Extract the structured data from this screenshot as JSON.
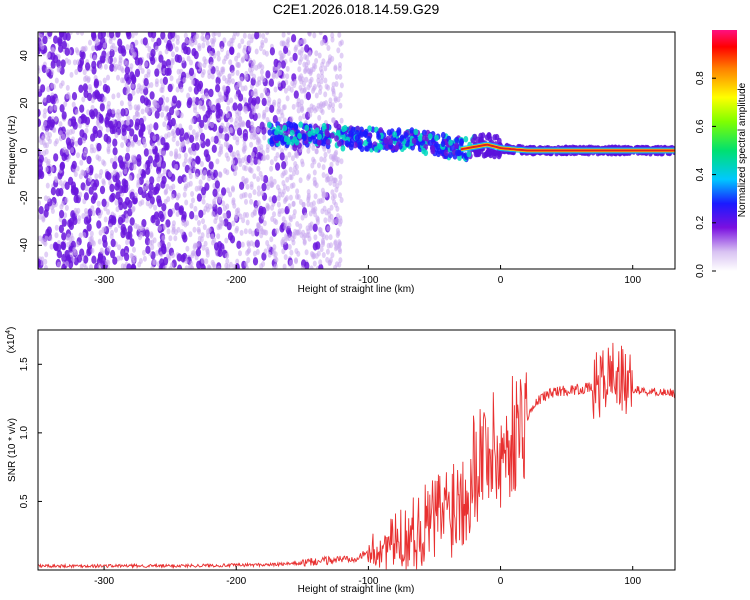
{
  "title": "C2E1.2026.018.14.59.G29",
  "colors": {
    "snr_line": "#e83030",
    "spectro_sparse": "#c9a8ee",
    "spectro_dense": "#6a16dc",
    "carrier": "#e02020"
  },
  "chart_data": [
    {
      "type": "heatmap",
      "name": "spectrogram",
      "xlabel": "Height of straight line (km)",
      "ylabel": "Frequency (Hz)",
      "xlim": [
        -350,
        132
      ],
      "ylim": [
        -50,
        50
      ],
      "xticks": [
        -300,
        -200,
        -100,
        0,
        100
      ],
      "xtick_labels": [
        "-300",
        "-200",
        "-100",
        "0",
        "100"
      ],
      "yticks": [
        -40,
        -20,
        0,
        20,
        40
      ],
      "ytick_labels": [
        "-40",
        "-20",
        "0",
        "20",
        "40"
      ],
      "noise_region_x": [
        -350,
        -120
      ],
      "carrier_band": [
        {
          "x": -175,
          "f": 7.0
        },
        {
          "x": -150,
          "f": 6.5
        },
        {
          "x": -125,
          "f": 5.5
        },
        {
          "x": -100,
          "f": 5.0
        },
        {
          "x": -75,
          "f": 4.5
        },
        {
          "x": -50,
          "f": 3.0
        },
        {
          "x": -30,
          "f": 0.5
        },
        {
          "x": -10,
          "f": 2.5
        },
        {
          "x": 0,
          "f": 1.0
        },
        {
          "x": 20,
          "f": 0.0
        },
        {
          "x": 132,
          "f": 0.0
        }
      ],
      "colorbar": {
        "label": "Normalized spectral amplitude",
        "range": [
          0,
          1
        ],
        "ticks": [
          0.0,
          0.2,
          0.4,
          0.6,
          0.8
        ],
        "tick_labels": [
          "0.0",
          "0.2",
          "0.4",
          "0.6",
          "0.8"
        ]
      }
    },
    {
      "type": "line",
      "name": "snr",
      "xlabel": "Height of straight line (km)",
      "ylabel": "SNR (10 * v/v)",
      "multiplier": "(x10",
      "multiplier_exp": "4",
      "multiplier_close": ")",
      "xlim": [
        -350,
        132
      ],
      "ylim": [
        0,
        1.75
      ],
      "xticks": [
        -300,
        -200,
        -100,
        0,
        100
      ],
      "xtick_labels": [
        "-300",
        "-200",
        "-100",
        "0",
        "100"
      ],
      "yticks": [
        0.5,
        1.0,
        1.5
      ],
      "ytick_labels": [
        "0.5",
        "1.0",
        "1.5"
      ],
      "series": [
        {
          "name": "SNR",
          "x": [
            -350,
            -300,
            -250,
            -200,
            -170,
            -150,
            -130,
            -110,
            -100,
            -90,
            -80,
            -70,
            -60,
            -50,
            -40,
            -30,
            -20,
            -15,
            -10,
            -5,
            0,
            5,
            10,
            15,
            20,
            30,
            40,
            50,
            60,
            70,
            75,
            80,
            85,
            90,
            95,
            100,
            110,
            120,
            132
          ],
          "y": [
            0.03,
            0.03,
            0.03,
            0.035,
            0.04,
            0.05,
            0.07,
            0.09,
            0.12,
            0.16,
            0.2,
            0.25,
            0.3,
            0.38,
            0.45,
            0.55,
            0.75,
            0.85,
            0.9,
            0.85,
            0.82,
            0.9,
            1.0,
            1.05,
            1.12,
            1.25,
            1.3,
            1.31,
            1.32,
            1.33,
            1.35,
            1.4,
            1.45,
            1.4,
            1.35,
            1.32,
            1.3,
            1.3,
            1.29
          ]
        }
      ]
    }
  ]
}
